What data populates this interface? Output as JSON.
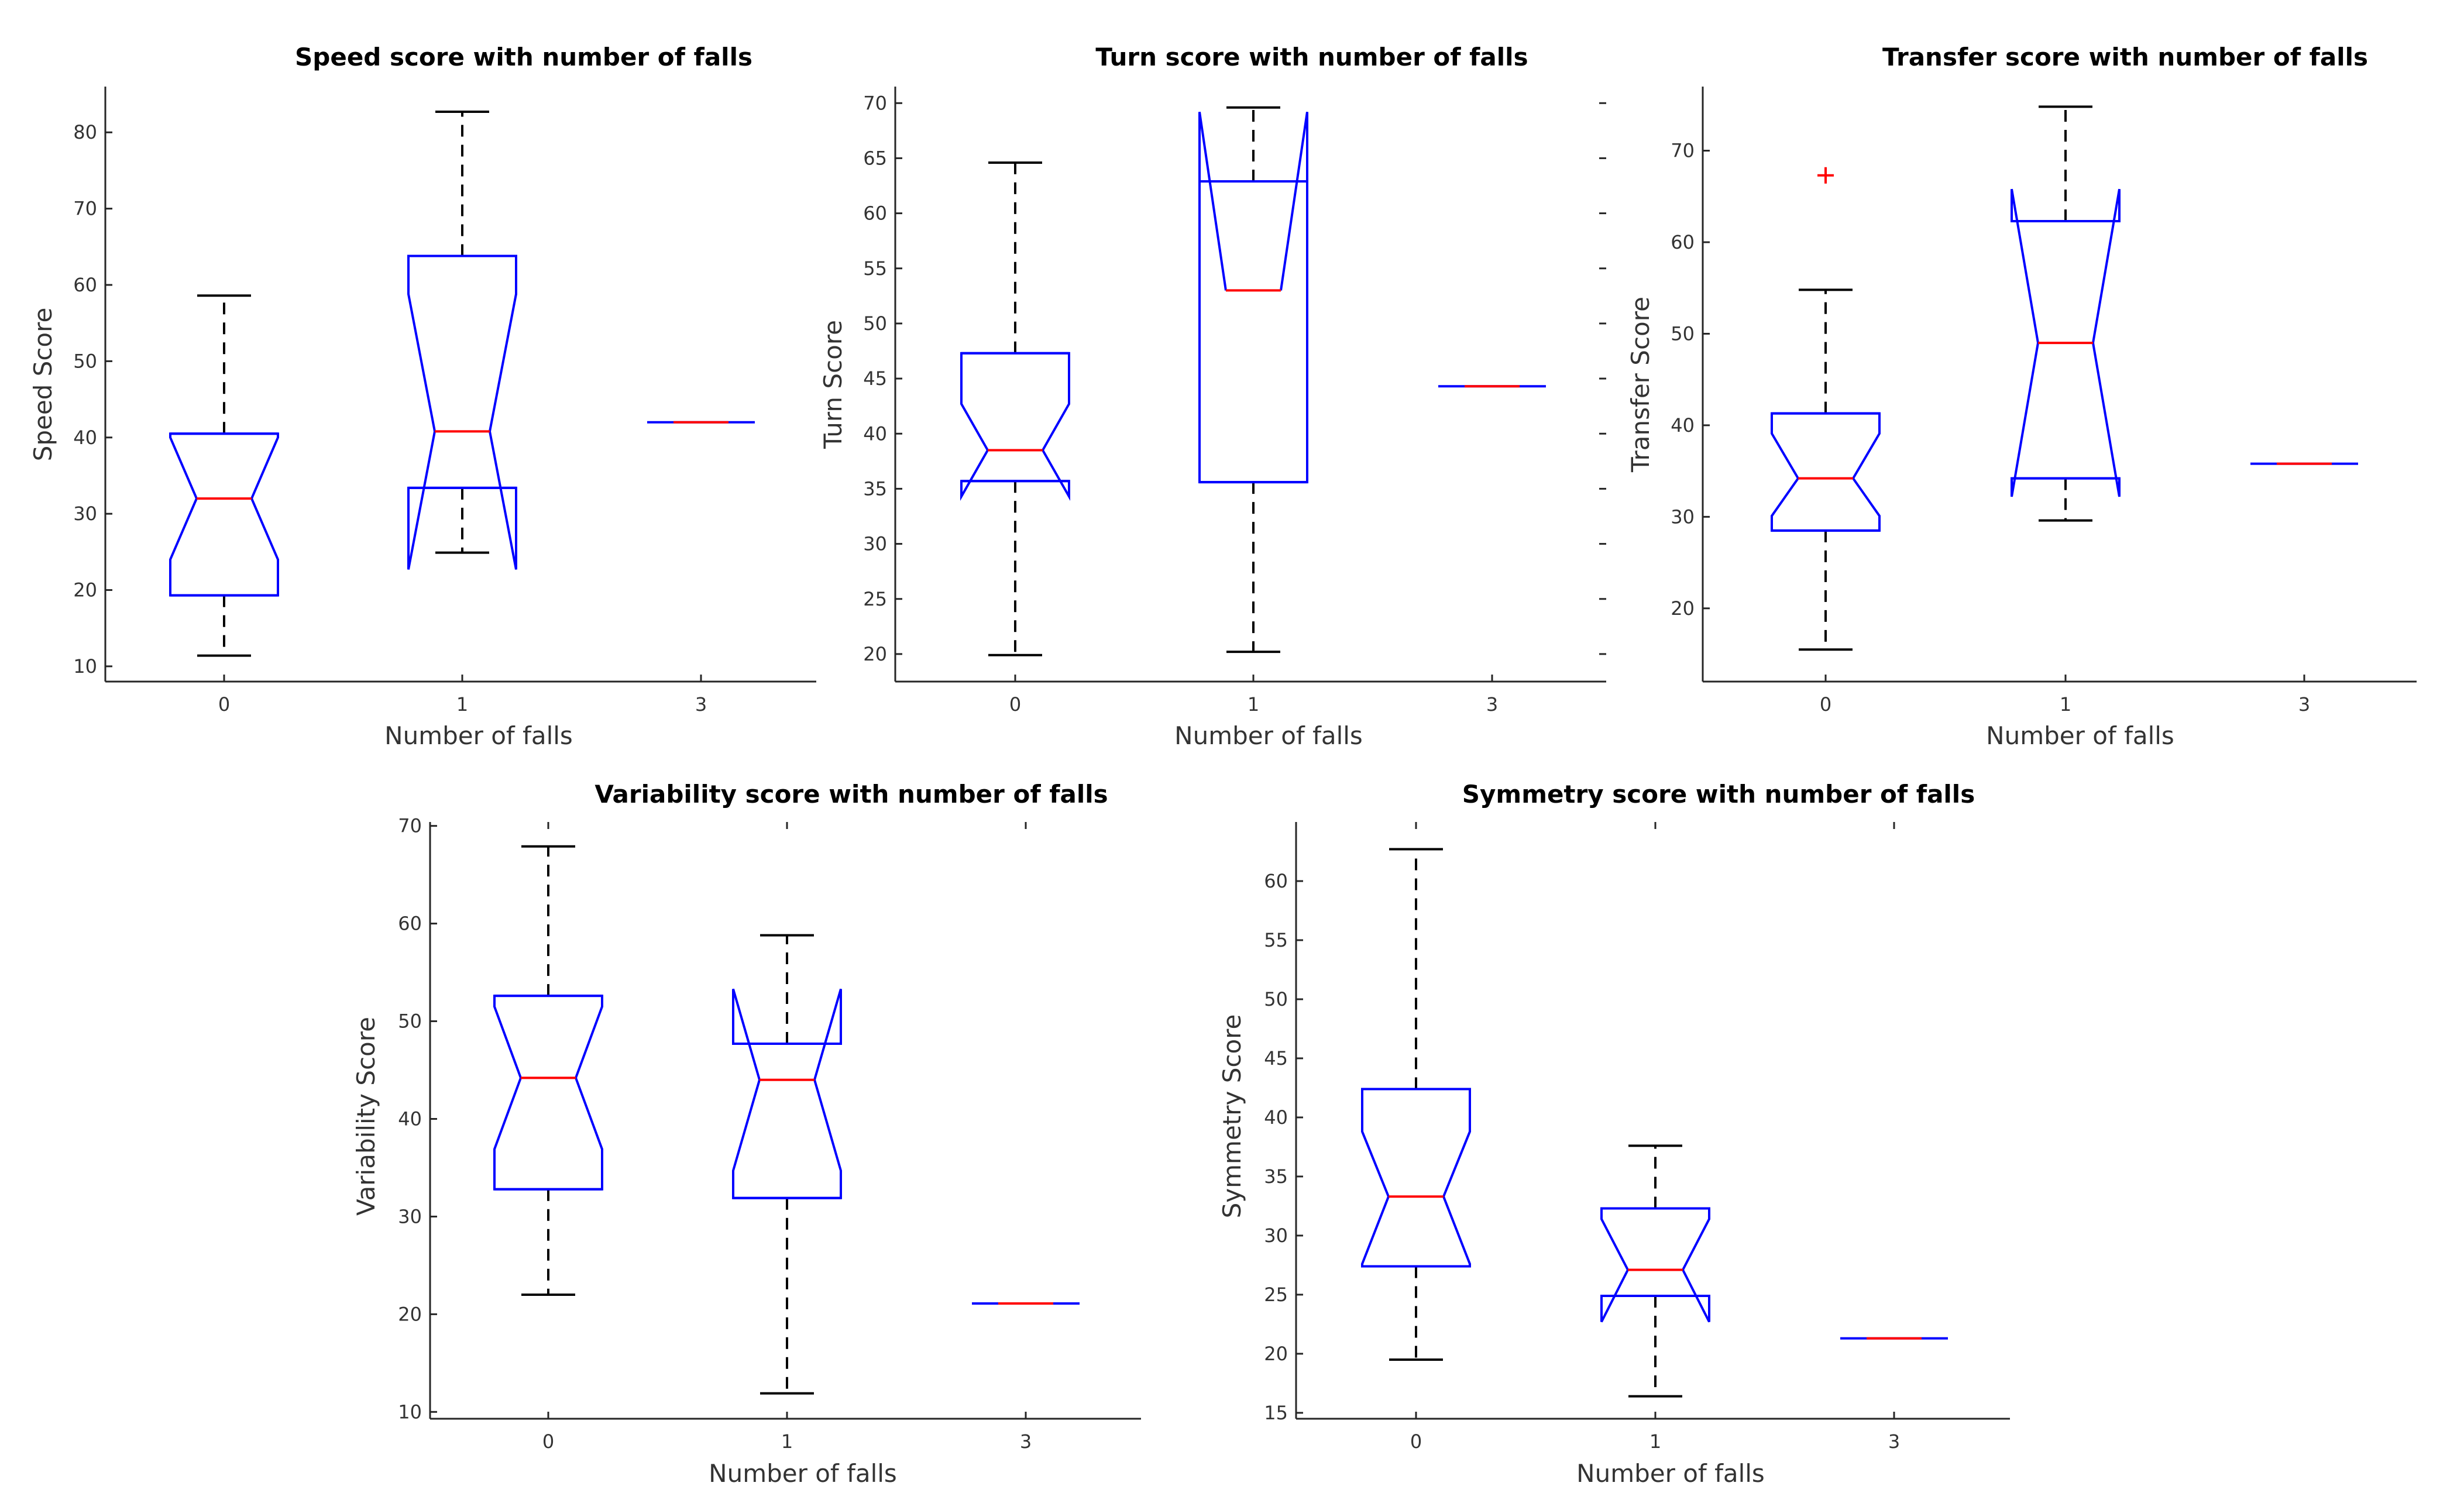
{
  "chart_data": [
    {
      "id": "speed",
      "type": "boxplot",
      "title": "Speed score with number of falls",
      "xlabel": "Number of falls",
      "ylabel": "Speed Score",
      "ylim": [
        8,
        86
      ],
      "yticks": [
        10,
        20,
        30,
        40,
        50,
        60,
        70,
        80
      ],
      "categories": [
        "0",
        "1",
        "3"
      ],
      "boxes": [
        {
          "q1": 19.3,
          "median": 32,
          "q3": 40.5,
          "notch_low": 24,
          "notch_high": 40,
          "wlow": 11.4,
          "whigh": 58.6,
          "outliers": []
        },
        {
          "q1": 33.4,
          "median": 40.8,
          "q3": 63.8,
          "notch_low": 22.7,
          "notch_high": 58.8,
          "wlow": 24.9,
          "whigh": 82.7,
          "outliers": []
        },
        {
          "q1": 42,
          "median": 42,
          "q3": 42,
          "wlow": 42,
          "whigh": 42,
          "outliers": []
        }
      ],
      "left_ticks": true,
      "right_ticks": false,
      "top_ticks": false
    },
    {
      "id": "turn",
      "type": "boxplot",
      "title": "Turn score with number of falls",
      "xlabel": "Number of falls",
      "ylabel": "Turn Score",
      "ylim": [
        17.5,
        71.5
      ],
      "yticks": [
        20,
        25,
        30,
        35,
        40,
        45,
        50,
        55,
        60,
        65,
        70
      ],
      "categories": [
        "0",
        "1",
        "3"
      ],
      "boxes": [
        {
          "q1": 35.7,
          "median": 38.5,
          "q3": 47.3,
          "notch_low": 34.3,
          "notch_high": 42.7,
          "wlow": 19.9,
          "whigh": 64.6,
          "outliers": []
        },
        {
          "q1": 35.6,
          "median": 53.0,
          "q3": 62.9,
          "notch_low": 69.2,
          "notch_high": 69.2,
          "wlow": 20.2,
          "whigh": 69.6,
          "outliers": []
        },
        {
          "q1": 44.3,
          "median": 44.3,
          "q3": 44.3,
          "wlow": 44.3,
          "whigh": 44.3,
          "outliers": []
        }
      ],
      "left_ticks": true,
      "right_ticks": true,
      "top_ticks": false
    },
    {
      "id": "transfer",
      "type": "boxplot",
      "title": "Transfer score with number of falls",
      "xlabel": "Number of falls",
      "ylabel": "Transfer Score",
      "ylim": [
        12,
        77
      ],
      "yticks": [
        20,
        30,
        40,
        50,
        60,
        70
      ],
      "categories": [
        "0",
        "1",
        "3"
      ],
      "boxes": [
        {
          "q1": 28.5,
          "median": 34.2,
          "q3": 41.3,
          "notch_low": 30.1,
          "notch_high": 39.1,
          "wlow": 15.5,
          "whigh": 54.8,
          "outliers": [
            67.3
          ]
        },
        {
          "q1": 34.2,
          "median": 49.0,
          "q3": 62.3,
          "notch_low": 32.2,
          "notch_high": 65.8,
          "wlow": 29.6,
          "whigh": 74.8,
          "outliers": []
        },
        {
          "q1": 35.8,
          "median": 35.8,
          "q3": 35.8,
          "wlow": 35.8,
          "whigh": 35.8,
          "outliers": []
        }
      ],
      "left_ticks": true,
      "right_ticks": false,
      "top_ticks": false
    },
    {
      "id": "variability",
      "type": "boxplot",
      "title": "Variability score with number of falls",
      "xlabel": "Number of falls",
      "ylabel": "Variability Score",
      "ylim": [
        9.3,
        70.4
      ],
      "yticks": [
        10,
        20,
        30,
        40,
        50,
        60,
        70
      ],
      "categories": [
        "0",
        "1",
        "3"
      ],
      "boxes": [
        {
          "q1": 32.8,
          "median": 44.2,
          "q3": 52.6,
          "notch_low": 36.9,
          "notch_high": 51.5,
          "wlow": 22.0,
          "whigh": 67.9,
          "outliers": []
        },
        {
          "q1": 31.9,
          "median": 44.0,
          "q3": 47.7,
          "notch_low": 34.7,
          "notch_high": 53.3,
          "wlow": 11.9,
          "whigh": 58.8,
          "outliers": []
        },
        {
          "q1": 21.1,
          "median": 21.1,
          "q3": 21.1,
          "wlow": 21.1,
          "whigh": 21.1,
          "outliers": []
        }
      ],
      "left_ticks": true,
      "right_ticks": false,
      "top_ticks": true
    },
    {
      "id": "symmetry",
      "type": "boxplot",
      "title": "Symmetry score with number of falls",
      "xlabel": "Number of falls",
      "ylabel": "Symmetry Score",
      "ylim": [
        14.5,
        65
      ],
      "yticks": [
        15,
        20,
        25,
        30,
        35,
        40,
        45,
        50,
        55,
        60
      ],
      "categories": [
        "0",
        "1",
        "3"
      ],
      "boxes": [
        {
          "q1": 27.4,
          "median": 33.3,
          "q3": 42.4,
          "notch_low": 27.6,
          "notch_high": 38.8,
          "wlow": 19.5,
          "whigh": 62.7,
          "outliers": []
        },
        {
          "q1": 24.9,
          "median": 27.1,
          "q3": 32.3,
          "notch_low": 22.7,
          "notch_high": 31.4,
          "wlow": 16.4,
          "whigh": 37.6,
          "outliers": []
        },
        {
          "q1": 21.3,
          "median": 21.3,
          "q3": 21.3,
          "wlow": 21.3,
          "whigh": 21.3,
          "outliers": []
        }
      ],
      "left_ticks": true,
      "right_ticks": false,
      "top_ticks": true
    }
  ],
  "colors": {
    "box": "#0000FF",
    "median": "#FF0000",
    "whisker": "#000000",
    "outlier": "#FF0000",
    "axis": "#262626"
  }
}
